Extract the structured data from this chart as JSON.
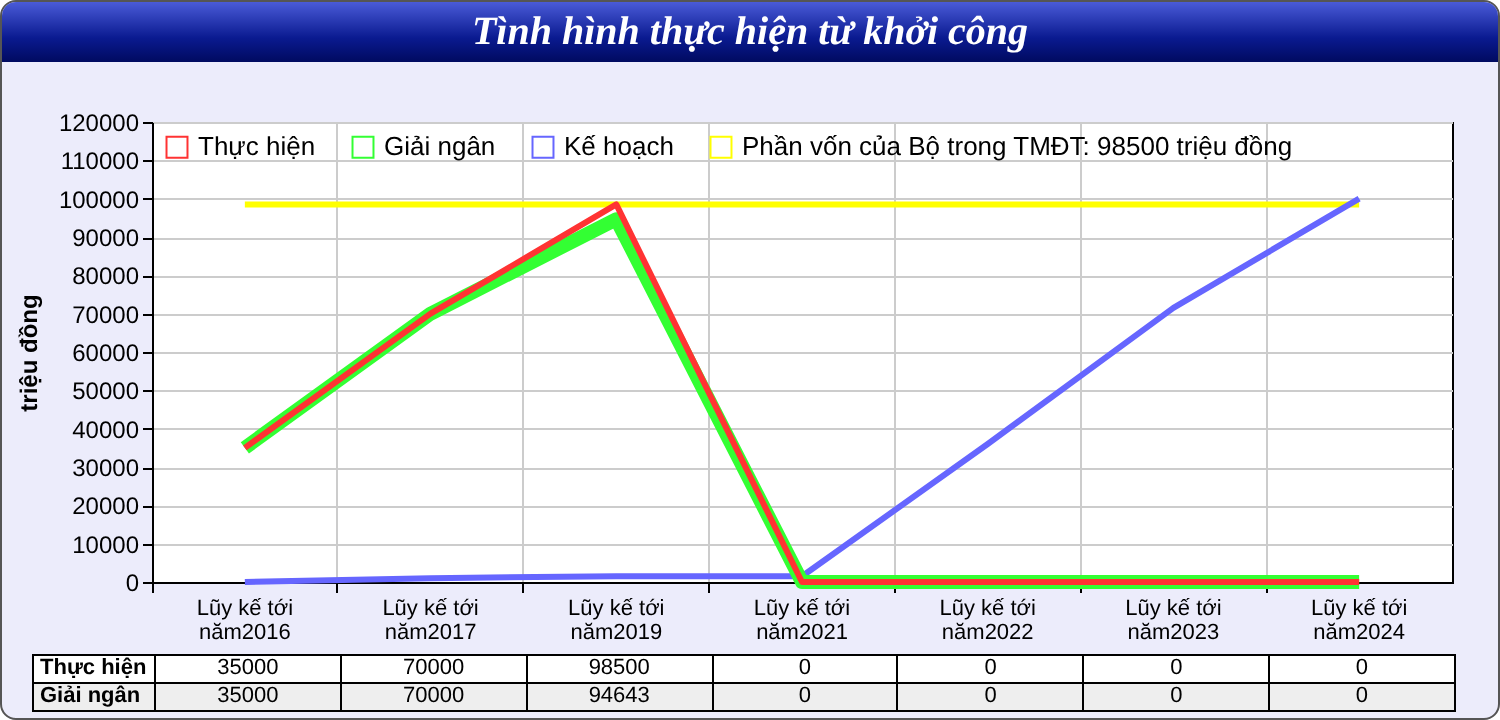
{
  "chart_data": {
    "type": "line",
    "title": "Tình hình thực hiện từ khởi công",
    "ylabel": "triệu đồng",
    "categories": [
      "Lũy kế tới năm2016",
      "Lũy kế tới năm2017",
      "Lũy kế tới năm2019",
      "Lũy kế tới năm2021",
      "Lũy kế tới năm2022",
      "Lũy kế tới năm2023",
      "Lũy kế tới năm2024"
    ],
    "series": [
      {
        "name": "Thực hiện",
        "color": "#ff3333",
        "values": [
          35000,
          70000,
          98500,
          0,
          0,
          0,
          0
        ],
        "value_labels": [
          "35000",
          "70000",
          "98500",
          "0",
          "0",
          "0",
          "0"
        ]
      },
      {
        "name": "Giải ngân",
        "color": "#33ff33",
        "values": [
          35000,
          70000,
          94643,
          0,
          0,
          0,
          0
        ],
        "value_labels": [
          "35000",
          "70000",
          "94643",
          "0",
          "0",
          "0",
          "0"
        ]
      },
      {
        "name": "Kế hoạch",
        "color": "#6666ff",
        "values": [
          0,
          1000,
          1500,
          1500,
          36000,
          71500,
          100000
        ]
      },
      {
        "name": "Phần vốn của Bộ trong TMĐT: 98500 triệu đồng",
        "color": "#ffff00",
        "values": [
          98500,
          98500,
          98500,
          98500,
          98500,
          98500,
          98500
        ]
      }
    ],
    "ylim": [
      0,
      120000
    ],
    "yticks": [
      0,
      10000,
      20000,
      30000,
      40000,
      50000,
      60000,
      70000,
      80000,
      90000,
      100000,
      110000,
      120000
    ],
    "grid": true,
    "legend": "top",
    "marker": "none",
    "line_style": "solid"
  }
}
